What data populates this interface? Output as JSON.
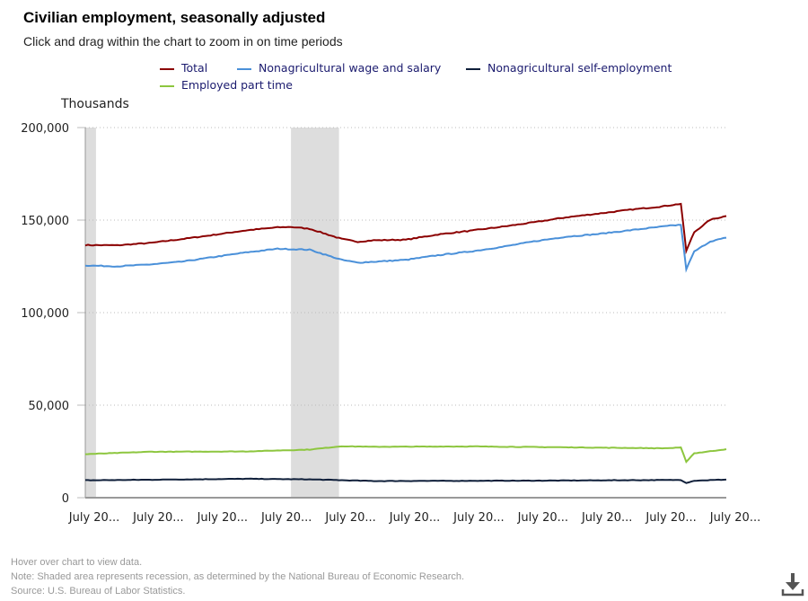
{
  "header": {
    "title": "Civilian employment, seasonally adjusted",
    "subtitle": "Click and drag within the chart to zoom in on time periods"
  },
  "footer": {
    "hover": "Hover over chart to view data.",
    "note": "Note: Shaded area represents recession, as determined by the National Bureau of Economic Research.",
    "source": "Source: U.S. Bureau of Labor Statistics."
  },
  "download_icon": "download-icon",
  "chart_data": {
    "type": "line",
    "ylabel": "Thousands",
    "ylim": [
      0,
      200000
    ],
    "yticks": [
      "200,000",
      "150,000",
      "100,000",
      "50,000",
      "0"
    ],
    "ytick_values": [
      200000,
      150000,
      100000,
      50000,
      0
    ],
    "xlim": [
      "2001-07",
      "2021-07"
    ],
    "xticks": [
      "July 20...",
      "July 20...",
      "July 20...",
      "July 20...",
      "July 20...",
      "July 20...",
      "July 20...",
      "July 20...",
      "July 20...",
      "July 20...",
      "July 20..."
    ],
    "xtick_dates": [
      "2001-07",
      "2003-07",
      "2005-07",
      "2007-07",
      "2009-07",
      "2011-07",
      "2013-07",
      "2015-07",
      "2017-07",
      "2019-07",
      "2021-07"
    ],
    "grid": "horizontal dotted",
    "legend": "top",
    "recessions": [
      [
        "2001-03",
        "2001-11"
      ],
      [
        "2007-12",
        "2009-06"
      ]
    ],
    "recession_color": "#dddddd",
    "series": [
      {
        "name": "Total",
        "color": "#8b0000",
        "points": [
          [
            "2001-07",
            136500
          ],
          [
            "2002-07",
            136400
          ],
          [
            "2003-07",
            137600
          ],
          [
            "2004-07",
            139700
          ],
          [
            "2005-07",
            142000
          ],
          [
            "2006-07",
            144400
          ],
          [
            "2007-07",
            146100
          ],
          [
            "2007-12",
            146300
          ],
          [
            "2008-07",
            145300
          ],
          [
            "2009-07",
            139800
          ],
          [
            "2010-01",
            138300
          ],
          [
            "2010-07",
            139100
          ],
          [
            "2011-07",
            139400
          ],
          [
            "2012-07",
            142200
          ],
          [
            "2013-07",
            144200
          ],
          [
            "2014-07",
            146400
          ],
          [
            "2015-07",
            148800
          ],
          [
            "2016-07",
            151500
          ],
          [
            "2017-07",
            153500
          ],
          [
            "2018-07",
            155600
          ],
          [
            "2019-07",
            157400
          ],
          [
            "2020-02",
            158800
          ],
          [
            "2020-04",
            133400
          ],
          [
            "2020-07",
            143500
          ],
          [
            "2021-01",
            150200
          ],
          [
            "2021-07",
            152200
          ]
        ]
      },
      {
        "name": "Nonagricultural wage and salary",
        "color": "#4a90d9",
        "points": [
          [
            "2001-07",
            125500
          ],
          [
            "2002-07",
            125000
          ],
          [
            "2003-07",
            126000
          ],
          [
            "2004-07",
            127500
          ],
          [
            "2005-07",
            130000
          ],
          [
            "2006-07",
            132500
          ],
          [
            "2007-07",
            134500
          ],
          [
            "2008-07",
            134000
          ],
          [
            "2009-07",
            128500
          ],
          [
            "2010-01",
            127000
          ],
          [
            "2011-07",
            128500
          ],
          [
            "2012-07",
            131000
          ],
          [
            "2013-07",
            133000
          ],
          [
            "2014-07",
            135500
          ],
          [
            "2015-07",
            138500
          ],
          [
            "2016-07",
            141000
          ],
          [
            "2017-07",
            142500
          ],
          [
            "2018-07",
            144500
          ],
          [
            "2019-07",
            146500
          ],
          [
            "2020-02",
            147500
          ],
          [
            "2020-04",
            123500
          ],
          [
            "2020-07",
            133000
          ],
          [
            "2021-01",
            138500
          ],
          [
            "2021-07",
            140500
          ]
        ]
      },
      {
        "name": "Nonagricultural self-employment",
        "color": "#0f1f3a",
        "points": [
          [
            "2001-07",
            9400
          ],
          [
            "2003-07",
            9700
          ],
          [
            "2006-07",
            10200
          ],
          [
            "2008-07",
            9900
          ],
          [
            "2010-07",
            9000
          ],
          [
            "2015-07",
            9200
          ],
          [
            "2020-02",
            9600
          ],
          [
            "2020-04",
            8000
          ],
          [
            "2020-07",
            9200
          ],
          [
            "2021-07",
            9800
          ]
        ]
      },
      {
        "name": "Employed part time",
        "color": "#8dc63f",
        "points": [
          [
            "2001-07",
            23500
          ],
          [
            "2003-07",
            24800
          ],
          [
            "2006-07",
            25000
          ],
          [
            "2008-07",
            26000
          ],
          [
            "2009-07",
            27800
          ],
          [
            "2010-07",
            27500
          ],
          [
            "2013-07",
            27700
          ],
          [
            "2016-07",
            27200
          ],
          [
            "2019-07",
            26700
          ],
          [
            "2020-02",
            27000
          ],
          [
            "2020-04",
            19500
          ],
          [
            "2020-07",
            24000
          ],
          [
            "2021-07",
            26200
          ]
        ]
      }
    ]
  }
}
